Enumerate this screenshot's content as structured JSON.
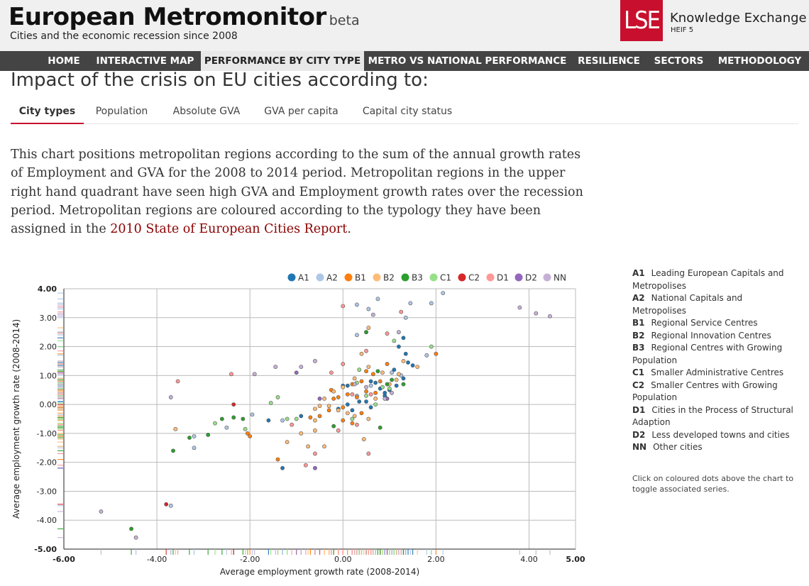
{
  "header": {
    "title": "European Metromonitor",
    "beta": "beta",
    "subtitle": "Cities and the economic recession since 2008",
    "logo_text": "LSE",
    "partner_title": "Knowledge Exchange",
    "partner_sub": "HEIF 5"
  },
  "nav": [
    {
      "label": "HOME",
      "active": false
    },
    {
      "label": "INTERACTIVE MAP",
      "active": false
    },
    {
      "label": "PERFORMANCE BY CITY TYPE",
      "active": true
    },
    {
      "label": "METRO VS NATIONAL PERFORMANCE",
      "active": false
    },
    {
      "label": "RESILIENCE",
      "active": false
    },
    {
      "label": "SECTORS",
      "active": false
    },
    {
      "label": "METHODOLOGY",
      "active": false
    }
  ],
  "page": {
    "heading": "Impact of the crisis on EU cities according to:",
    "tabs": [
      {
        "label": "City types",
        "active": true
      },
      {
        "label": "Population",
        "active": false
      },
      {
        "label": "Absolute GVA",
        "active": false
      },
      {
        "label": "GVA per capita",
        "active": false
      },
      {
        "label": "Capital city status",
        "active": false
      }
    ],
    "description": "This chart positions metropolitan regions according to the sum of the annual growth rates of Employment and GVA for the 2008 to 2014 period. Metropolitan regions in the upper right hand quadrant have seen high GVA and Employment growth rates over the recession period. Metropolitan regions are coloured according to the typology they have been assigned in the",
    "link_text": "2010 State of European Cities Report",
    "period": "."
  },
  "legend_panel": {
    "items": [
      {
        "code": "A1",
        "label": "Leading European Capitals and Metropolises"
      },
      {
        "code": "A2",
        "label": "National Capitals and Metropolises"
      },
      {
        "code": "B1",
        "label": "Regional Service Centres"
      },
      {
        "code": "B2",
        "label": "Regional Innovation Centres"
      },
      {
        "code": "B3",
        "label": "Regional Centres with Growing Population"
      },
      {
        "code": "C1",
        "label": "Smaller Administrative Centres"
      },
      {
        "code": "C2",
        "label": "Smaller Centres with Growing Population"
      },
      {
        "code": "D1",
        "label": "Cities in the Process of Structural Adaption"
      },
      {
        "code": "D2",
        "label": "Less developed towns and cities"
      },
      {
        "code": "NN",
        "label": "Other cities"
      }
    ],
    "note": "Click on coloured dots above the chart to toggle associated series."
  },
  "chart_data": {
    "type": "scatter",
    "xlabel": "Average employment growth rate (2008-2014)",
    "ylabel": "Average employment growth rate (2008-2014)",
    "xlim": [
      -6,
      5
    ],
    "ylim": [
      -5,
      4
    ],
    "x_ticks": [
      -6,
      -4,
      -2,
      0,
      2,
      4,
      5
    ],
    "y_ticks": [
      -5,
      -4,
      -3,
      -2,
      -1,
      0,
      1,
      2,
      3,
      4
    ],
    "x_tick_labels": [
      "-6.00",
      "-4.00",
      "-2.00",
      "0.00",
      "2.00",
      "4.00",
      "5.00"
    ],
    "y_tick_labels": [
      "-5.00",
      "-4.00",
      "-3.00",
      "-2.00",
      "-1.00",
      "0.00",
      "1.00",
      "2.00",
      "3.00",
      "4.00"
    ],
    "grid": true,
    "legend_position": "top-right",
    "series": [
      {
        "name": "A1",
        "color": "#1f77b4",
        "points": [
          [
            0.0,
            0.65
          ],
          [
            0.1,
            0.65
          ],
          [
            0.35,
            0.1
          ],
          [
            0.6,
            0.8
          ],
          [
            0.7,
            0.75
          ],
          [
            0.8,
            0.55
          ],
          [
            0.9,
            0.4
          ],
          [
            1.0,
            0.5
          ],
          [
            1.1,
            1.2
          ],
          [
            1.2,
            2.0
          ],
          [
            1.3,
            2.3
          ],
          [
            1.35,
            1.75
          ],
          [
            1.4,
            1.45
          ],
          [
            1.5,
            1.35
          ],
          [
            1.15,
            0.65
          ],
          [
            1.3,
            0.9
          ],
          [
            0.9,
            0.3
          ],
          [
            0.5,
            0.1
          ],
          [
            0.2,
            -0.2
          ],
          [
            -0.1,
            -0.15
          ],
          [
            0.6,
            -0.1
          ],
          [
            -1.3,
            -2.2
          ],
          [
            -1.6,
            -0.55
          ],
          [
            -0.9,
            -0.4
          ],
          [
            0.1,
            0.0
          ]
        ]
      },
      {
        "name": "A2",
        "color": "#aec7e8",
        "points": [
          [
            2.15,
            3.85
          ],
          [
            1.9,
            3.5
          ],
          [
            1.45,
            3.5
          ],
          [
            0.75,
            3.65
          ],
          [
            0.3,
            3.45
          ],
          [
            0.55,
            3.3
          ],
          [
            0.3,
            2.4
          ],
          [
            0.5,
            2.5
          ],
          [
            1.35,
            3.0
          ],
          [
            1.8,
            1.7
          ],
          [
            1.25,
            1.0
          ],
          [
            -1.3,
            -0.55
          ],
          [
            -1.95,
            -0.35
          ],
          [
            -3.7,
            -3.5
          ],
          [
            -3.2,
            -1.1
          ],
          [
            -3.2,
            -1.5
          ],
          [
            -2.5,
            -0.8
          ],
          [
            0.3,
            0.3
          ],
          [
            0.6,
            0.65
          ],
          [
            1.05,
            1.1
          ]
        ]
      },
      {
        "name": "B1",
        "color": "#ff7f0e",
        "points": [
          [
            2.0,
            1.75
          ],
          [
            0.65,
            1.05
          ],
          [
            0.5,
            1.15
          ],
          [
            0.95,
            1.4
          ],
          [
            0.4,
            0.8
          ],
          [
            0.2,
            0.7
          ],
          [
            0.1,
            0.35
          ],
          [
            0.0,
            -0.1
          ],
          [
            -0.2,
            0.2
          ],
          [
            -0.3,
            -0.2
          ],
          [
            -0.5,
            -0.4
          ],
          [
            -0.7,
            -0.45
          ],
          [
            0.0,
            -0.55
          ],
          [
            0.2,
            -0.65
          ],
          [
            0.3,
            0.25
          ],
          [
            0.5,
            0.45
          ],
          [
            0.8,
            0.8
          ],
          [
            -2.0,
            -1.1
          ],
          [
            -2.05,
            -1.0
          ],
          [
            -1.4,
            -1.9
          ],
          [
            0.7,
            0.4
          ],
          [
            -0.1,
            0.25
          ],
          [
            -0.25,
            0.5
          ],
          [
            0.4,
            -0.3
          ]
        ]
      },
      {
        "name": "B2",
        "color": "#ffbb78",
        "points": [
          [
            0.55,
            2.65
          ],
          [
            0.4,
            1.75
          ],
          [
            0.55,
            1.3
          ],
          [
            0.85,
            1.1
          ],
          [
            1.2,
            1.05
          ],
          [
            1.3,
            1.5
          ],
          [
            1.6,
            1.3
          ],
          [
            0.25,
            0.9
          ],
          [
            0.0,
            0.6
          ],
          [
            -0.2,
            0.45
          ],
          [
            -0.4,
            0.2
          ],
          [
            -0.5,
            -0.05
          ],
          [
            -0.6,
            -0.15
          ],
          [
            -0.3,
            -0.05
          ],
          [
            -0.1,
            -0.2
          ],
          [
            0.1,
            -0.3
          ],
          [
            0.25,
            -0.4
          ],
          [
            -0.6,
            -0.55
          ],
          [
            -0.6,
            -0.9
          ],
          [
            -0.4,
            -1.45
          ],
          [
            -0.75,
            -1.45
          ],
          [
            -0.9,
            -1.0
          ],
          [
            -1.2,
            -1.3
          ],
          [
            -3.6,
            -0.85
          ],
          [
            0.45,
            -1.2
          ],
          [
            0.55,
            -0.5
          ],
          [
            0.7,
            0.2
          ],
          [
            1.0,
            0.7
          ],
          [
            1.15,
            0.85
          ]
        ]
      },
      {
        "name": "B3",
        "color": "#2ca02c",
        "points": [
          [
            0.5,
            2.5
          ],
          [
            0.75,
            1.15
          ],
          [
            0.95,
            0.7
          ],
          [
            1.05,
            0.85
          ],
          [
            1.3,
            0.7
          ],
          [
            -2.15,
            -0.5
          ],
          [
            -2.35,
            -0.45
          ],
          [
            -2.6,
            -0.5
          ],
          [
            -2.9,
            -1.05
          ],
          [
            -3.3,
            -1.15
          ],
          [
            -3.65,
            -1.6
          ],
          [
            -4.55,
            -4.3
          ],
          [
            0.8,
            -0.8
          ],
          [
            -0.2,
            -0.75
          ]
        ]
      },
      {
        "name": "C1",
        "color": "#98df8a",
        "points": [
          [
            1.9,
            2.0
          ],
          [
            1.1,
            2.2
          ],
          [
            0.35,
            1.2
          ],
          [
            0.3,
            0.75
          ],
          [
            0.5,
            0.3
          ],
          [
            -1.2,
            -0.5
          ],
          [
            -1.0,
            -0.5
          ],
          [
            -1.55,
            0.05
          ],
          [
            -1.4,
            0.25
          ],
          [
            -2.75,
            -0.65
          ],
          [
            -2.1,
            -0.85
          ],
          [
            0.2,
            -0.5
          ],
          [
            0.85,
            0.6
          ],
          [
            1.0,
            0.55
          ],
          [
            0.7,
            0.0
          ]
        ]
      },
      {
        "name": "C2",
        "color": "#d62728",
        "points": [
          [
            -2.35,
            0.0
          ],
          [
            -3.8,
            -3.45
          ]
        ]
      },
      {
        "name": "D1",
        "color": "#ff9896",
        "points": [
          [
            0.0,
            3.4
          ],
          [
            1.25,
            3.2
          ],
          [
            0.95,
            2.45
          ],
          [
            0.5,
            1.85
          ],
          [
            -0.25,
            1.1
          ],
          [
            -2.4,
            1.05
          ],
          [
            -3.55,
            0.8
          ],
          [
            -0.6,
            -1.7
          ],
          [
            -0.8,
            -2.1
          ],
          [
            -1.1,
            -0.7
          ],
          [
            0.55,
            -1.7
          ],
          [
            0.3,
            -0.7
          ],
          [
            -0.1,
            -0.9
          ],
          [
            0.0,
            1.4
          ],
          [
            0.2,
            0.35
          ],
          [
            0.6,
            0.35
          ]
        ]
      },
      {
        "name": "D2",
        "color": "#9467bd",
        "points": [
          [
            -1.0,
            1.1
          ],
          [
            0.95,
            0.2
          ],
          [
            -0.6,
            -2.2
          ],
          [
            -0.5,
            0.2
          ]
        ]
      },
      {
        "name": "NN",
        "color": "#c5b0d5",
        "points": [
          [
            4.45,
            3.05
          ],
          [
            4.15,
            3.15
          ],
          [
            3.8,
            3.35
          ],
          [
            0.65,
            3.1
          ],
          [
            1.2,
            2.5
          ],
          [
            -1.45,
            1.3
          ],
          [
            -0.9,
            1.3
          ],
          [
            -0.6,
            1.5
          ],
          [
            -1.9,
            1.05
          ],
          [
            -3.7,
            0.25
          ],
          [
            -4.45,
            -4.6
          ],
          [
            -5.2,
            -3.7
          ],
          [
            0.25,
            0.7
          ],
          [
            1.05,
            0.4
          ],
          [
            0.5,
            0.6
          ],
          [
            0.9,
            0.2
          ]
        ]
      }
    ]
  }
}
